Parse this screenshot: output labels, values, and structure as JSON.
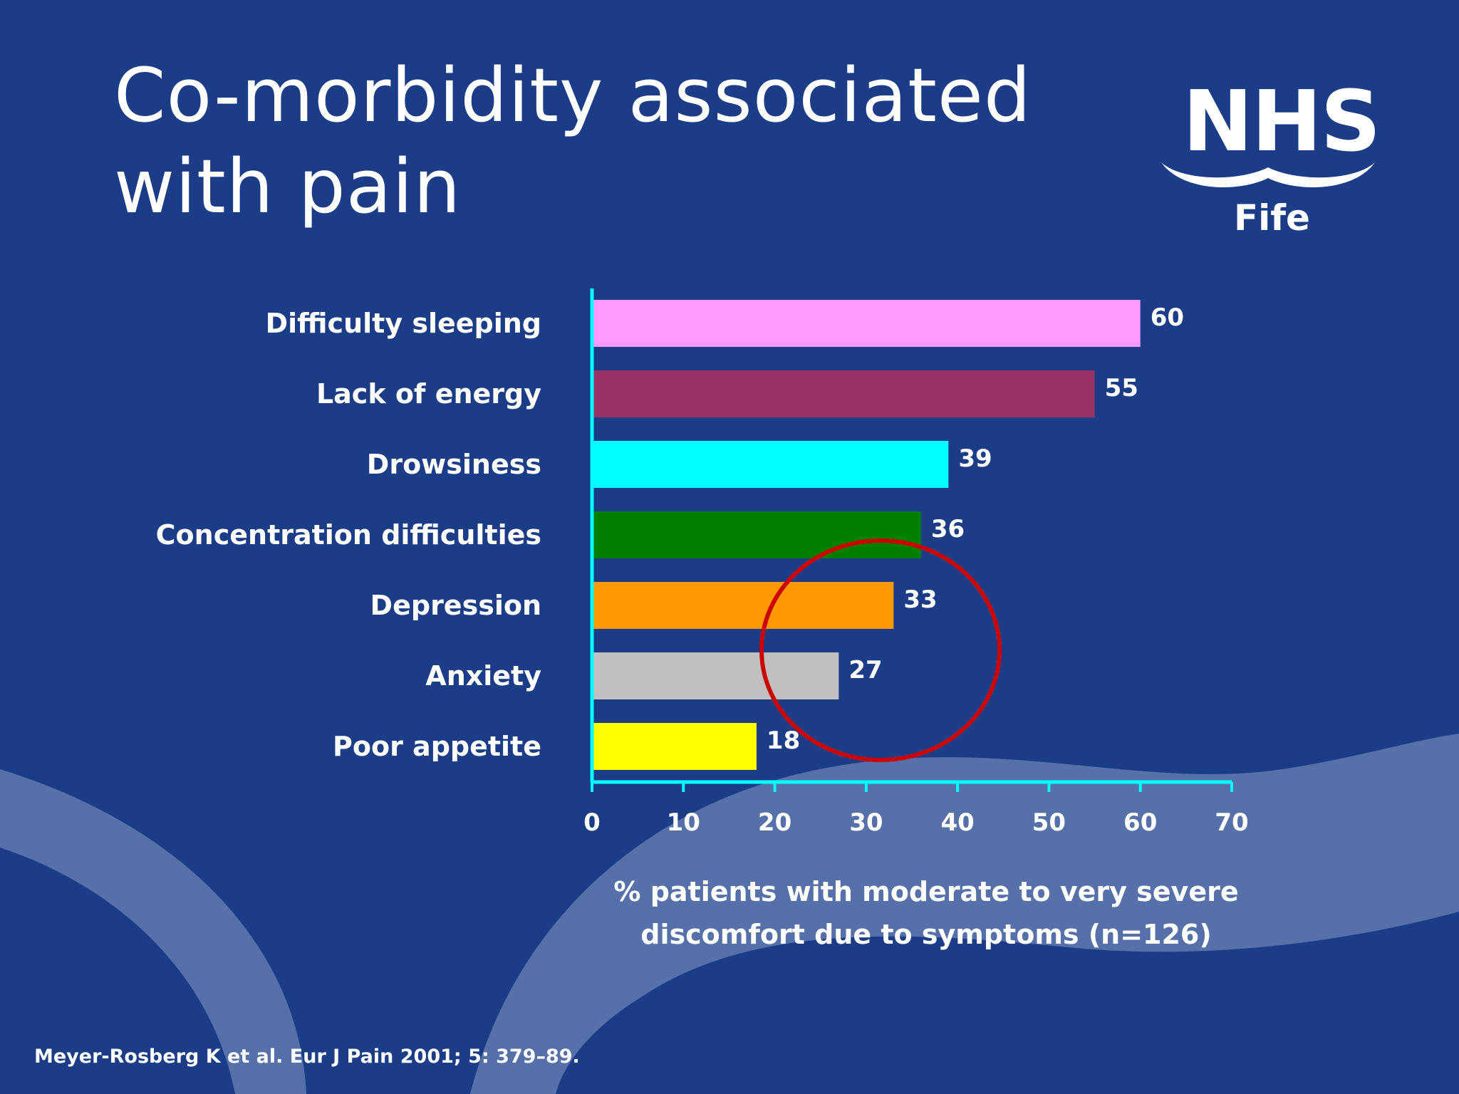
{
  "slide": {
    "title_line1": "Co-morbidity associated",
    "title_line2": "with pain",
    "logo": {
      "name": "NHS",
      "region": "Fife"
    },
    "citation": "Meyer-Rosberg K et al. Eur J Pain 2001; 5: 379–89."
  },
  "chart_data": {
    "type": "bar",
    "orientation": "horizontal",
    "categories": [
      "Difficulty sleeping",
      "Lack of energy",
      "Drowsiness",
      "Concentration difficulties",
      "Depression",
      "Anxiety",
      "Poor appetite"
    ],
    "values": [
      60,
      55,
      39,
      36,
      33,
      27,
      18
    ],
    "colors": [
      "#ff99ff",
      "#993366",
      "#00ffff",
      "#008000",
      "#ff9900",
      "#c0c0c0",
      "#ffff00"
    ],
    "xlabel_line1": "% patients with moderate to very severe",
    "xlabel_line2": "discomfort due to symptoms (n=126)",
    "xlim": [
      0,
      70
    ],
    "xticks": [
      0,
      10,
      20,
      30,
      40,
      50,
      60,
      70
    ],
    "axis_color": "#00ffff",
    "grid": false,
    "annotation": {
      "shape": "circle",
      "color": "#cc0000",
      "around": [
        "Depression",
        "Anxiety"
      ]
    }
  }
}
